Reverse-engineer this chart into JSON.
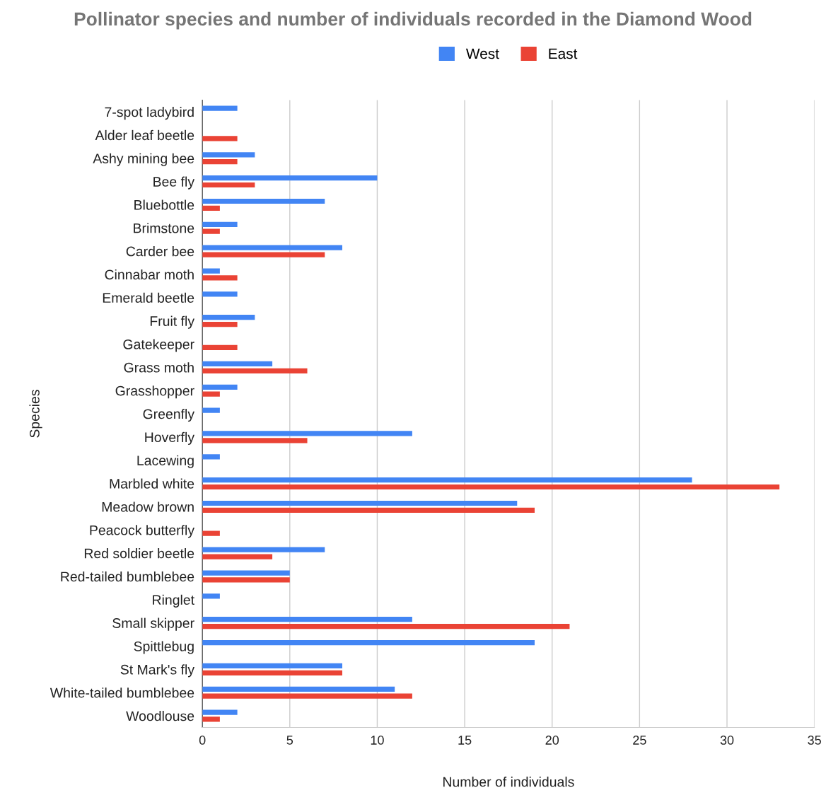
{
  "chart_data": {
    "type": "bar",
    "orientation": "horizontal",
    "title": "Pollinator species and number of individuals recorded in the Diamond Wood",
    "xlabel": "Number of individuals",
    "ylabel": "Species",
    "categories": [
      "7-spot ladybird",
      "Alder leaf beetle",
      "Ashy mining bee",
      "Bee fly",
      "Bluebottle",
      "Brimstone",
      "Carder bee",
      "Cinnabar moth",
      "Emerald beetle",
      "Fruit fly",
      "Gatekeeper",
      "Grass moth",
      "Grasshopper",
      "Greenfly",
      "Hoverfly",
      "Lacewing",
      "Marbled white",
      "Meadow brown",
      "Peacock butterfly",
      "Red soldier beetle",
      "Red-tailed bumblebee",
      "Ringlet",
      "Small skipper",
      "Spittlebug",
      "St Mark's fly",
      "White-tailed bumblebee",
      "Woodlouse"
    ],
    "series": [
      {
        "name": "West",
        "color": "#4285f4",
        "values": [
          2,
          null,
          3,
          10,
          7,
          2,
          8,
          1,
          2,
          3,
          null,
          4,
          2,
          1,
          12,
          1,
          28,
          18,
          null,
          7,
          5,
          1,
          12,
          19,
          8,
          11,
          2
        ]
      },
      {
        "name": "East",
        "color": "#ea4335",
        "values": [
          null,
          2,
          2,
          3,
          1,
          1,
          7,
          2,
          null,
          2,
          2,
          6,
          1,
          null,
          6,
          null,
          33,
          19,
          1,
          4,
          5,
          null,
          21,
          null,
          8,
          12,
          1
        ]
      }
    ],
    "xlim": [
      0,
      35
    ],
    "xticks": [
      0,
      5,
      10,
      15,
      20,
      25,
      30,
      35
    ],
    "grid": "x",
    "legend": "top"
  }
}
